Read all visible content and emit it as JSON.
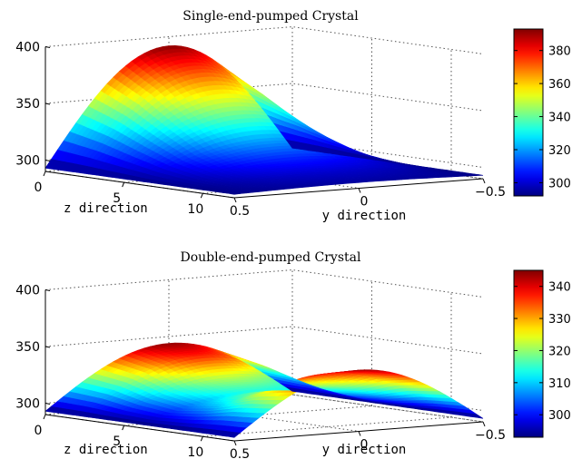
{
  "chart_data": [
    {
      "type": "surface",
      "title": "Single-end-pumped Crystal",
      "xlabel": "z direction",
      "ylabel": "y direction",
      "zlabel": "",
      "x_range": [
        0,
        12
      ],
      "x_ticks": [
        "0",
        "5",
        "10"
      ],
      "y_range": [
        0.5,
        -0.5
      ],
      "y_ticks": [
        "0.5",
        "0",
        "−0.5"
      ],
      "z_range": [
        290,
        400
      ],
      "z_ticks": [
        "300",
        "350",
        "400"
      ],
      "colorbar_range": [
        292,
        393
      ],
      "colorbar_ticks": [
        "300",
        "320",
        "340",
        "360",
        "380"
      ],
      "colormap": "jet",
      "grid": true,
      "surface": {
        "z_axis_samples": [
          0,
          2,
          4,
          6,
          8,
          10,
          12
        ],
        "center_temperature": [
          392,
          372,
          346,
          322,
          307,
          299,
          295
        ],
        "edge_temperature": 293
      }
    },
    {
      "type": "surface",
      "title": "Double-end-pumped Crystal",
      "xlabel": "z direction",
      "ylabel": "y direction",
      "zlabel": "",
      "x_range": [
        0,
        12
      ],
      "x_ticks": [
        "0",
        "5",
        "10"
      ],
      "y_range": [
        0.5,
        -0.5
      ],
      "y_ticks": [
        "0.5",
        "0",
        "−0.5"
      ],
      "z_range": [
        290,
        400
      ],
      "z_ticks": [
        "300",
        "350",
        "400"
      ],
      "colorbar_range": [
        293,
        345
      ],
      "colorbar_ticks": [
        "300",
        "310",
        "320",
        "330",
        "340"
      ],
      "colormap": "jet",
      "grid": true,
      "surface": {
        "z_axis_samples": [
          0,
          2,
          4,
          6,
          8,
          10,
          12
        ],
        "center_temperature": [
          344,
          337,
          322,
          314,
          322,
          337,
          344
        ],
        "edge_temperature": 293
      }
    }
  ]
}
